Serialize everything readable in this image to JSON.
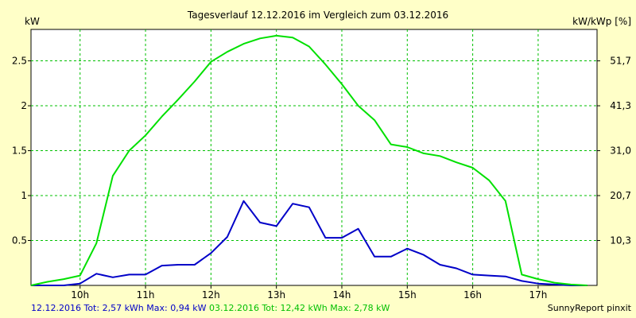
{
  "chart_data": {
    "type": "line",
    "title": "Tagesverlauf 12.12.2016 im Vergleich zum 03.12.2016",
    "ylabel": "kW",
    "ylabel_right": "kW/kWp [%]",
    "x_ticks": [
      "10h",
      "11h",
      "12h",
      "13h",
      "14h",
      "15h",
      "16h",
      "17h"
    ],
    "y_ticks": [
      "0.5",
      "1",
      "1.5",
      "2",
      "2.5"
    ],
    "y_right_ticks": [
      "10,3",
      "20,7",
      "31,0",
      "41,3",
      "51,7"
    ],
    "xlim": [
      9.25,
      17.9
    ],
    "ylim": [
      0,
      2.85
    ],
    "grid": true,
    "series": [
      {
        "name": "12.12.2016",
        "color": "#0000c8",
        "x": [
          9.25,
          9.5,
          9.75,
          10.0,
          10.25,
          10.5,
          10.75,
          11.0,
          11.25,
          11.5,
          11.75,
          12.0,
          12.25,
          12.5,
          12.75,
          13.0,
          13.25,
          13.5,
          13.75,
          14.0,
          14.25,
          14.5,
          14.75,
          15.0,
          15.25,
          15.5,
          15.75,
          16.0,
          16.25,
          16.5,
          16.75,
          17.0,
          17.25,
          17.5,
          17.75
        ],
        "y": [
          0,
          0,
          0,
          0.02,
          0.13,
          0.09,
          0.12,
          0.12,
          0.22,
          0.23,
          0.23,
          0.36,
          0.54,
          0.94,
          0.7,
          0.66,
          0.91,
          0.87,
          0.53,
          0.53,
          0.63,
          0.32,
          0.32,
          0.41,
          0.34,
          0.23,
          0.19,
          0.12,
          0.11,
          0.1,
          0.05,
          0.02,
          0.01,
          0,
          0
        ]
      },
      {
        "name": "03.12.2016",
        "color": "#00e000",
        "x": [
          9.25,
          9.5,
          9.75,
          10.0,
          10.25,
          10.5,
          10.75,
          11.0,
          11.25,
          11.5,
          11.75,
          12.0,
          12.25,
          12.5,
          12.75,
          13.0,
          13.25,
          13.5,
          13.75,
          14.0,
          14.25,
          14.5,
          14.75,
          15.0,
          15.25,
          15.5,
          15.75,
          16.0,
          16.25,
          16.5,
          16.75,
          17.0,
          17.25,
          17.5,
          17.75
        ],
        "y": [
          0,
          0.04,
          0.07,
          0.11,
          0.47,
          1.22,
          1.5,
          1.67,
          1.88,
          2.07,
          2.27,
          2.49,
          2.6,
          2.69,
          2.75,
          2.78,
          2.76,
          2.66,
          2.46,
          2.24,
          2.0,
          1.84,
          1.57,
          1.54,
          1.47,
          1.44,
          1.37,
          1.31,
          1.17,
          0.94,
          0.12,
          0.07,
          0.03,
          0.01,
          0
        ]
      }
    ],
    "legend": {
      "s1_text": "12.12.2016 Tot: 2,57 kWh Max: 0,94 kW",
      "s2_text": "03.12.2016 Tot: 12,42 kWh Max: 2,78 kW",
      "s1_color": "#0000c8",
      "s2_color": "#00c000"
    },
    "credit": "SunnyReport pinxit"
  }
}
